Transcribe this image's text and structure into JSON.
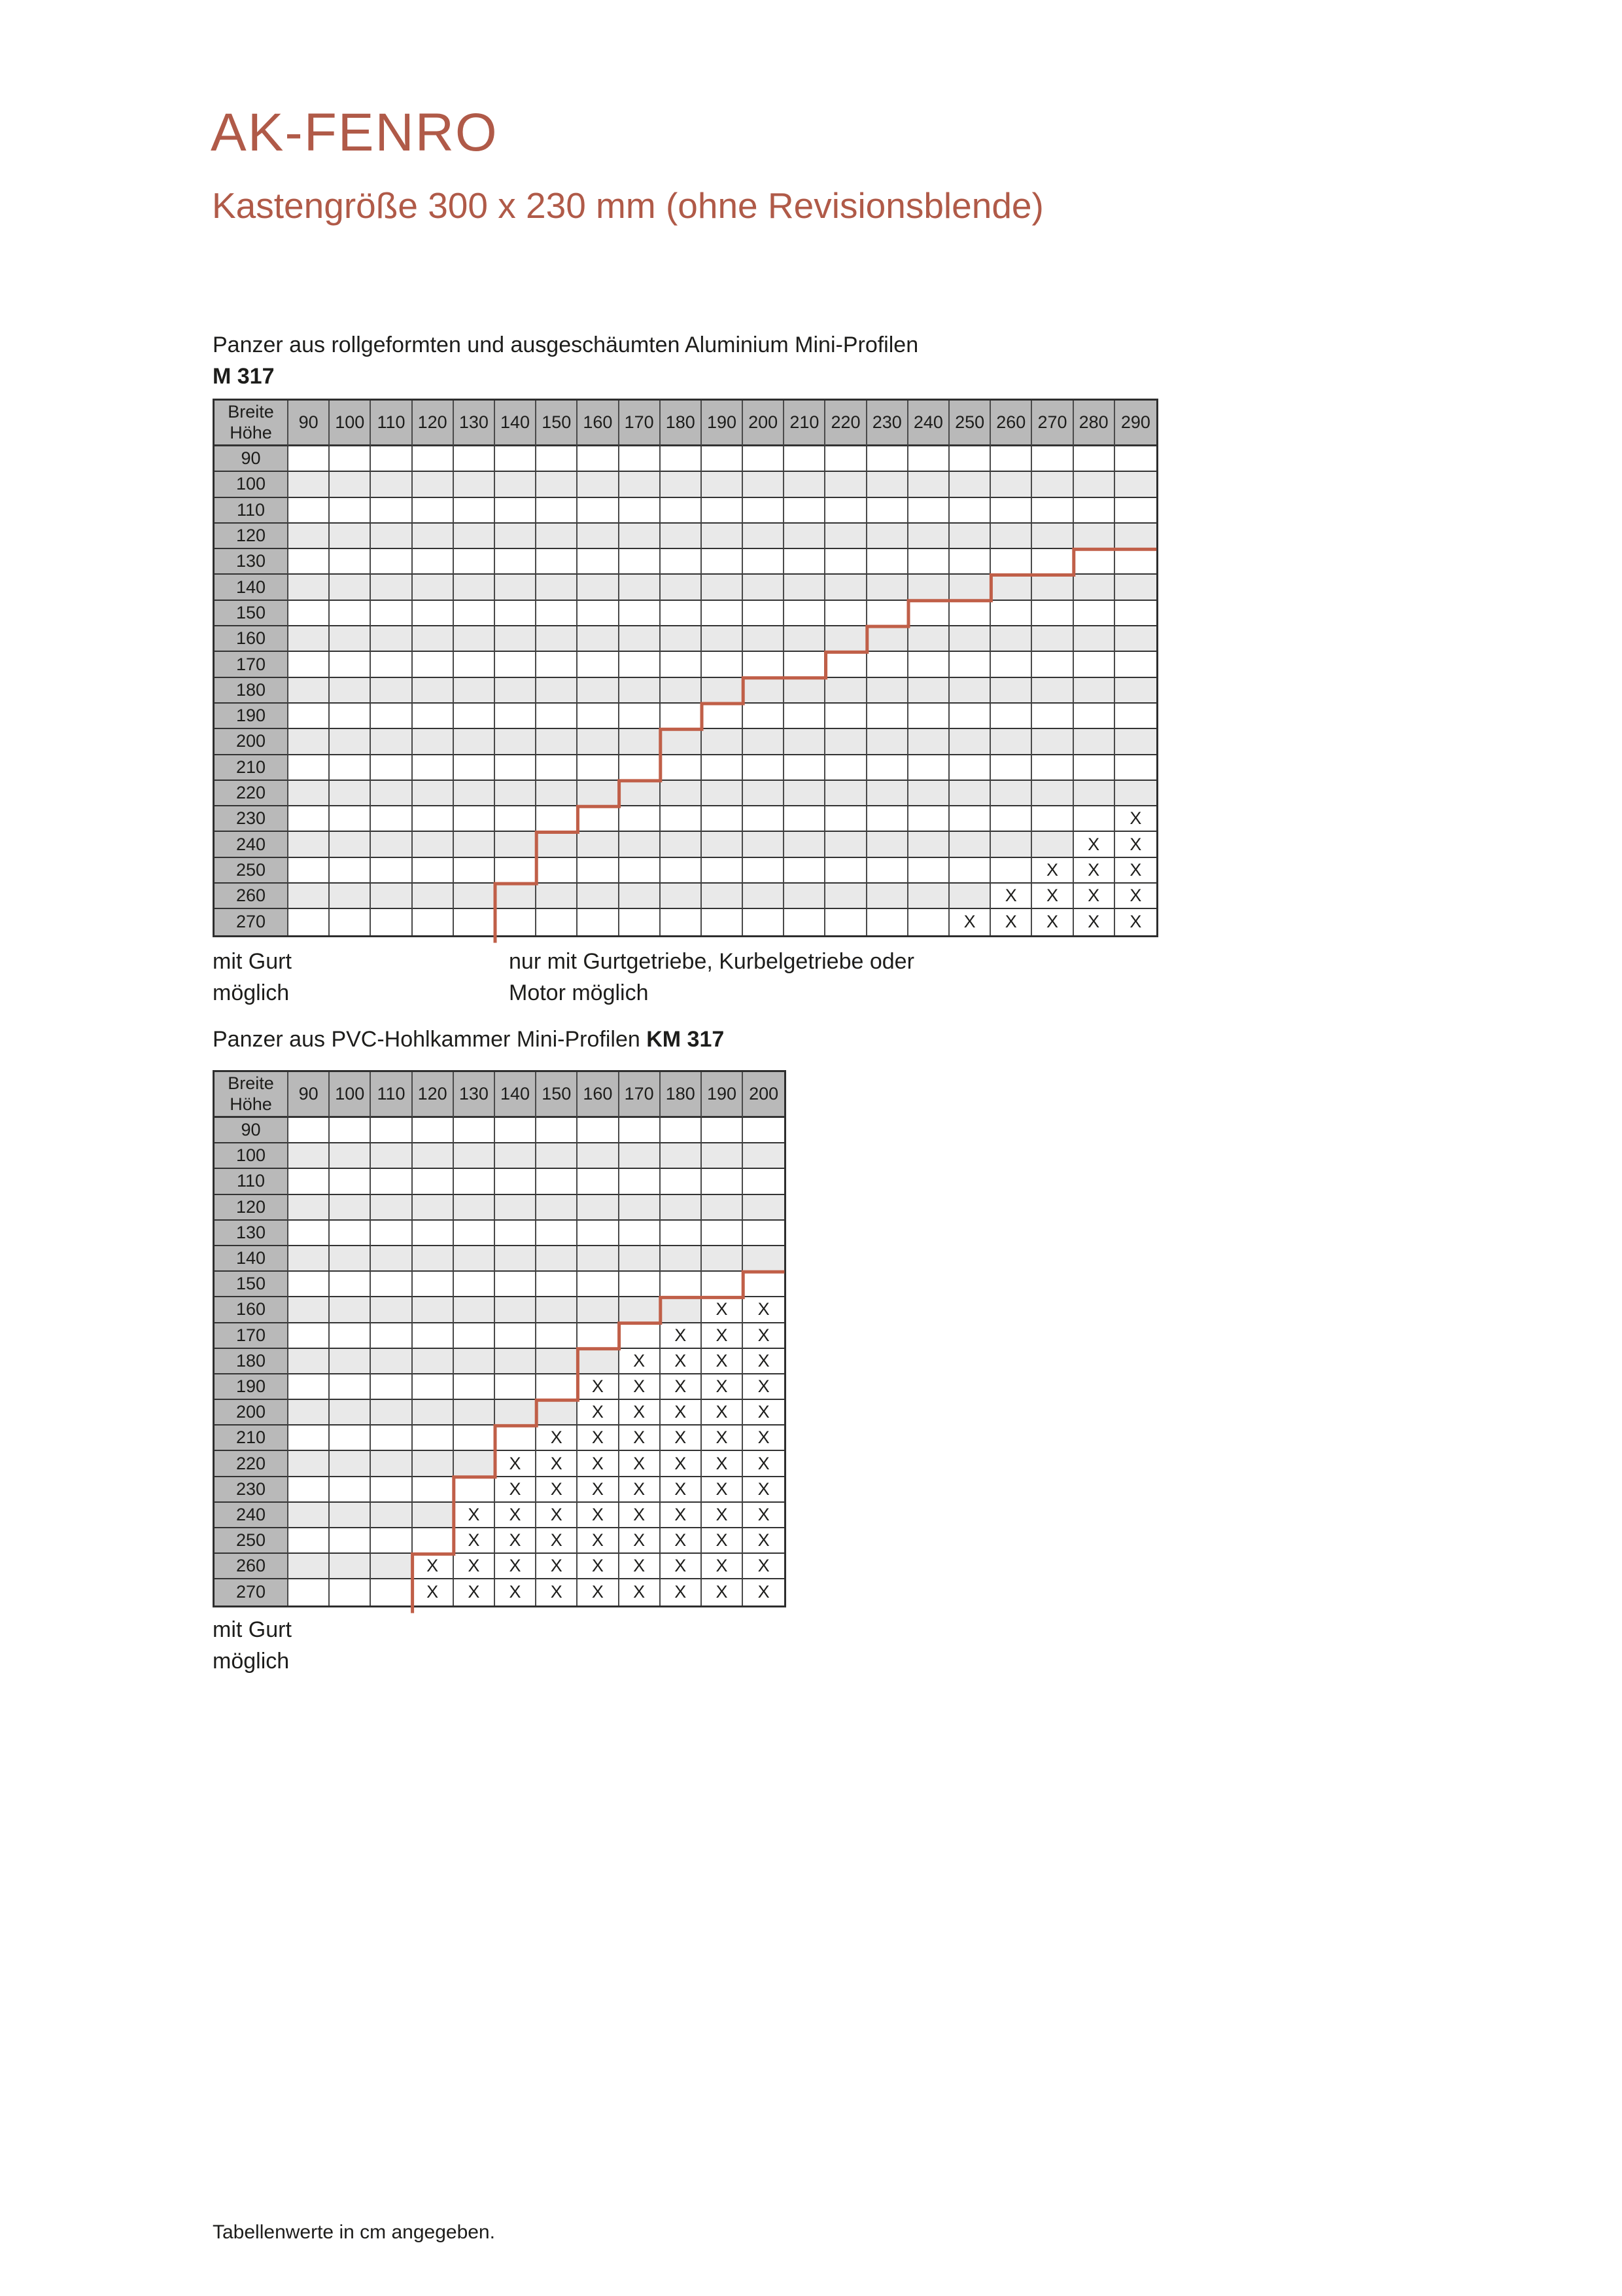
{
  "page": {
    "title": "AK-FENRO",
    "subtitle": "Kastengröße 300 x 230 mm (ohne Revisionsblende)",
    "footnote": "Tabellenwerte in cm angegeben.",
    "x_symbol": "X",
    "colors": {
      "accent": "#b05a48",
      "step_line": "#c05f48",
      "table_header_bg": "#b9b9b9",
      "alt_row_bg": "#e9e9e9",
      "grid_border": "#383838",
      "text": "#1d1d1b"
    }
  },
  "legends": [
    {
      "lines": [
        "mit Gurt",
        "möglich"
      ]
    },
    {
      "lines": [
        "nur mit Gurtgetriebe, Kurbelgetriebe oder",
        "Motor möglich"
      ]
    },
    {
      "lines": [
        "mit Gurt",
        "möglich"
      ]
    }
  ],
  "tables": [
    {
      "id": "m317",
      "intro": "Panzer aus rollgeformten und ausgeschäumten Aluminium Mini-Profilen",
      "model": "M 317",
      "corner": [
        "Breite",
        "Höhe"
      ],
      "columns": [
        90,
        100,
        110,
        120,
        130,
        140,
        150,
        160,
        170,
        180,
        190,
        200,
        210,
        220,
        230,
        240,
        250,
        260,
        270,
        280,
        290
      ],
      "rows": [
        90,
        100,
        110,
        120,
        130,
        140,
        150,
        160,
        170,
        180,
        190,
        200,
        210,
        220,
        230,
        240,
        250,
        260,
        270
      ],
      "x_marks": {
        "230": [
          290
        ],
        "240": [
          280,
          290
        ],
        "250": [
          270,
          280,
          290
        ],
        "260": [
          260,
          270,
          280,
          290
        ],
        "270": [
          250,
          260,
          270,
          280,
          290
        ]
      },
      "step_line": [
        [
          21,
          4
        ],
        [
          19,
          4
        ],
        [
          19,
          5
        ],
        [
          17,
          5
        ],
        [
          17,
          6
        ],
        [
          15,
          6
        ],
        [
          15,
          7
        ],
        [
          14,
          7
        ],
        [
          14,
          8
        ],
        [
          13,
          8
        ],
        [
          13,
          9
        ],
        [
          11,
          9
        ],
        [
          11,
          10
        ],
        [
          10,
          10
        ],
        [
          10,
          11
        ],
        [
          9,
          11
        ],
        [
          9,
          13
        ],
        [
          8,
          13
        ],
        [
          8,
          14
        ],
        [
          7,
          14
        ],
        [
          7,
          15
        ],
        [
          6,
          15
        ],
        [
          6,
          17
        ],
        [
          5,
          17
        ],
        [
          5,
          19.3
        ]
      ]
    },
    {
      "id": "km317",
      "intro": "Panzer aus PVC-Hohlkammer Mini-Profilen",
      "model": "KM 317",
      "corner": [
        "Breite",
        "Höhe"
      ],
      "columns": [
        90,
        100,
        110,
        120,
        130,
        140,
        150,
        160,
        170,
        180,
        190,
        200
      ],
      "rows": [
        90,
        100,
        110,
        120,
        130,
        140,
        150,
        160,
        170,
        180,
        190,
        200,
        210,
        220,
        230,
        240,
        250,
        260,
        270
      ],
      "x_marks": {
        "160": [
          190,
          200
        ],
        "170": [
          180,
          190,
          200
        ],
        "180": [
          170,
          180,
          190,
          200
        ],
        "190": [
          160,
          170,
          180,
          190,
          200
        ],
        "200": [
          160,
          170,
          180,
          190,
          200
        ],
        "210": [
          150,
          160,
          170,
          180,
          190,
          200
        ],
        "220": [
          140,
          150,
          160,
          170,
          180,
          190,
          200
        ],
        "230": [
          140,
          150,
          160,
          170,
          180,
          190,
          200
        ],
        "240": [
          130,
          140,
          150,
          160,
          170,
          180,
          190,
          200
        ],
        "250": [
          130,
          140,
          150,
          160,
          170,
          180,
          190,
          200
        ],
        "260": [
          120,
          130,
          140,
          150,
          160,
          170,
          180,
          190,
          200
        ],
        "270": [
          120,
          130,
          140,
          150,
          160,
          170,
          180,
          190,
          200
        ]
      },
      "step_line": [
        [
          12,
          6
        ],
        [
          11,
          6
        ],
        [
          11,
          7
        ],
        [
          9,
          7
        ],
        [
          9,
          8
        ],
        [
          8,
          8
        ],
        [
          8,
          9
        ],
        [
          7,
          9
        ],
        [
          7,
          11
        ],
        [
          6,
          11
        ],
        [
          6,
          12
        ],
        [
          5,
          12
        ],
        [
          5,
          14
        ],
        [
          4,
          14
        ],
        [
          4,
          17
        ],
        [
          3,
          17
        ],
        [
          3,
          19.3
        ]
      ]
    }
  ]
}
